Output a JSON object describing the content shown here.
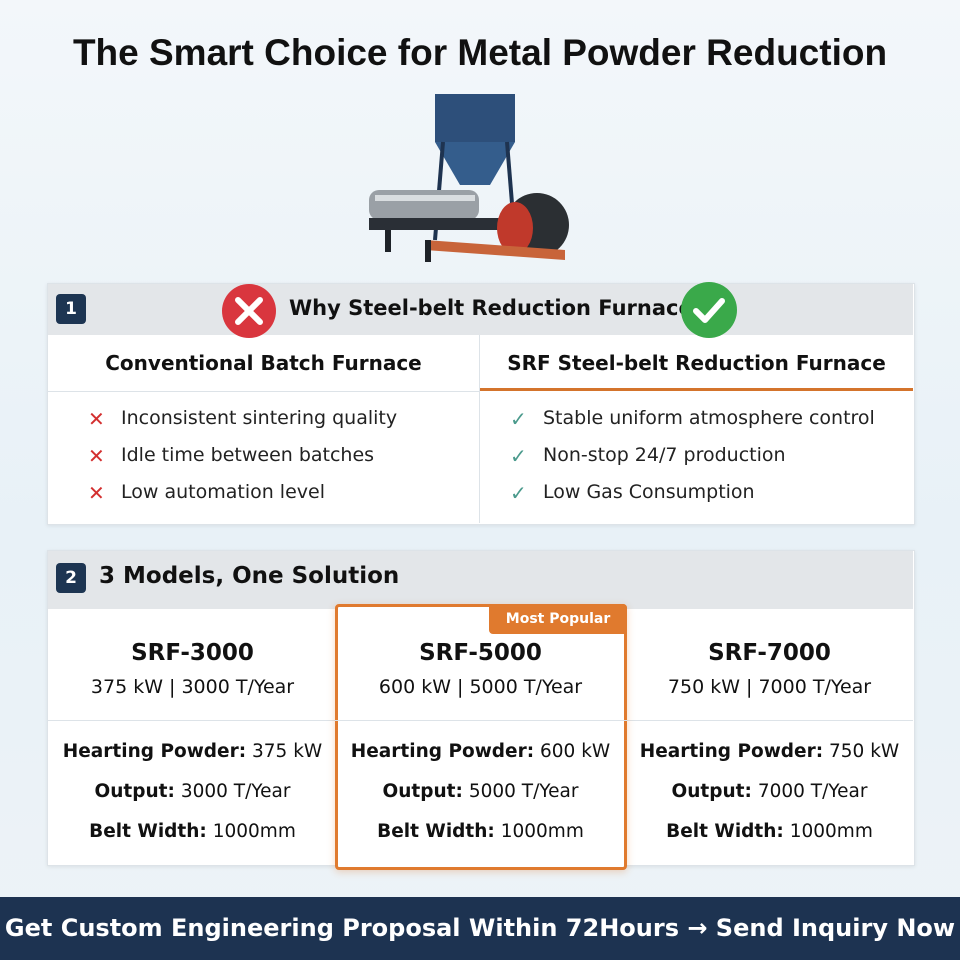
{
  "title": "The Smart Choice for Metal Powder Reduction",
  "comparison": {
    "number": "1",
    "heading": "Why Steel-belt Reduction Furnace?",
    "left": {
      "header": "Conventional Batch Furnace",
      "items": [
        "Inconsistent sintering quality",
        "Idle time between batches",
        "Low automation level"
      ]
    },
    "right": {
      "header": "SRF Steel-belt Reduction Furnace",
      "items": [
        "Stable uniform atmosphere control",
        "Non-stop 24/7 production",
        "Low Gas Consumption"
      ]
    }
  },
  "models": {
    "number": "2",
    "heading": "3 Models, One Solution",
    "badge": "Most Popular",
    "items": [
      {
        "name": "SRF-3000",
        "summary": "375 kW | 3000 T/Year",
        "specs": [
          {
            "label": "Hearting Powder:",
            "value": "375 kW"
          },
          {
            "label": "Output:",
            "value": "3000 T/Year"
          },
          {
            "label": "Belt Width:",
            "value": "1000mm"
          }
        ]
      },
      {
        "name": "SRF-5000",
        "summary": "600 kW | 5000 T/Year",
        "specs": [
          {
            "label": "Hearting Powder:",
            "value": "600 kW"
          },
          {
            "label": "Output:",
            "value": "5000 T/Year"
          },
          {
            "label": "Belt Width:",
            "value": "1000mm"
          }
        ]
      },
      {
        "name": "SRF-7000",
        "summary": "750 kW | 7000 T/Year",
        "specs": [
          {
            "label": "Hearting Powder:",
            "value": "750 kW"
          },
          {
            "label": "Output:",
            "value": "7000 T/Year"
          },
          {
            "label": "Belt Width:",
            "value": "1000mm"
          }
        ]
      }
    ]
  },
  "cta": "Get Custom Engineering Proposal Within 72Hours → Send Inquiry Now"
}
